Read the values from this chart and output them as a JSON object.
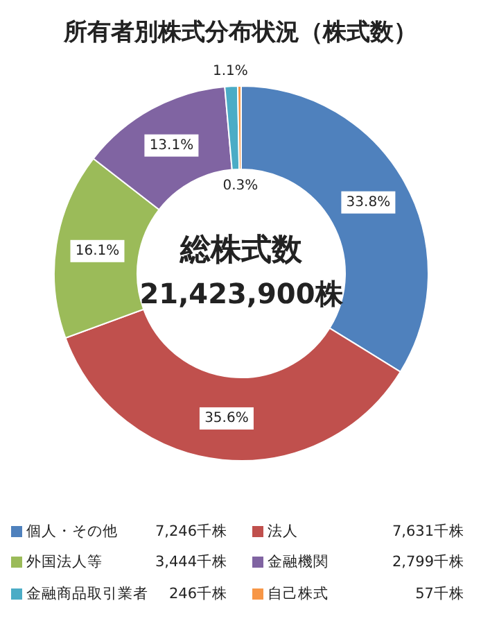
{
  "chart_data": {
    "type": "donut",
    "title": "所有者別株式分布状況（株式数）",
    "categories": [
      "個人・その他",
      "法人",
      "外国法人等",
      "金融機関",
      "金融商品取引業者",
      "自己株式"
    ],
    "values": [
      33.8,
      35.6,
      16.1,
      13.1,
      1.1,
      0.3
    ],
    "value_labels": [
      "33.8%",
      "35.6%",
      "16.1%",
      "13.1%",
      "1.1%",
      "0.3%"
    ],
    "colors": [
      "#4f81bd",
      "#c0504d",
      "#9bbb59",
      "#8064a2",
      "#4bacc6",
      "#f79646"
    ],
    "legend": "bottom",
    "annotations": [
      "総株式数",
      "21,423,900株",
      "7,246千株",
      "7,631千株",
      "3,444千株",
      "2,799千株",
      "246千株",
      "57千株"
    ]
  }
}
